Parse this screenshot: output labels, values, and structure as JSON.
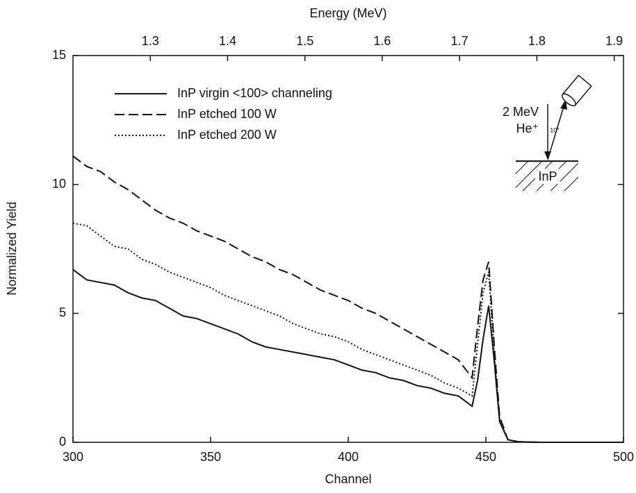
{
  "chart_data": {
    "type": "line",
    "xlabel": "Channel",
    "ylabel": "Normalized Yield",
    "x2label": "Energy (MeV)",
    "x": [
      300,
      305,
      310,
      315,
      320,
      325,
      330,
      335,
      340,
      345,
      350,
      355,
      360,
      365,
      370,
      375,
      380,
      385,
      390,
      395,
      400,
      405,
      410,
      415,
      420,
      425,
      430,
      435,
      440,
      445,
      447,
      449,
      451,
      453,
      455,
      458,
      462,
      470,
      480,
      490,
      500
    ],
    "series": [
      {
        "name": "InP virgin <100> channeling",
        "color": "#111111",
        "dash": "solid",
        "values": [
          6.7,
          6.3,
          6.2,
          6.1,
          5.8,
          5.6,
          5.5,
          5.2,
          4.9,
          4.8,
          4.6,
          4.4,
          4.2,
          3.9,
          3.7,
          3.6,
          3.5,
          3.4,
          3.3,
          3.2,
          3.0,
          2.8,
          2.7,
          2.5,
          2.4,
          2.2,
          2.1,
          1.9,
          1.8,
          1.4,
          2.4,
          4.0,
          5.3,
          3.2,
          0.8,
          0.1,
          0.02,
          0,
          0,
          0,
          0
        ]
      },
      {
        "name": "InP etched 100 W",
        "color": "#111111",
        "dash": "dashed",
        "values": [
          11.1,
          10.7,
          10.5,
          10.1,
          9.8,
          9.4,
          9.0,
          8.7,
          8.5,
          8.2,
          8.0,
          7.8,
          7.5,
          7.2,
          7.0,
          6.7,
          6.5,
          6.2,
          5.9,
          5.7,
          5.5,
          5.2,
          5.0,
          4.7,
          4.4,
          4.1,
          3.8,
          3.5,
          3.2,
          2.5,
          4.5,
          6.3,
          7.0,
          3.8,
          1.0,
          0.1,
          0.02,
          0,
          0,
          0,
          0
        ]
      },
      {
        "name": "InP etched 200 W",
        "color": "#111111",
        "dash": "dotted",
        "values": [
          8.5,
          8.4,
          8.0,
          7.6,
          7.5,
          7.1,
          6.9,
          6.6,
          6.4,
          6.2,
          6.0,
          5.7,
          5.5,
          5.3,
          5.1,
          4.9,
          4.6,
          4.4,
          4.2,
          4.1,
          3.9,
          3.6,
          3.4,
          3.2,
          3.0,
          2.8,
          2.6,
          2.3,
          2.1,
          1.8,
          3.8,
          5.8,
          6.6,
          3.5,
          0.9,
          0.1,
          0.02,
          0,
          0,
          0,
          0
        ]
      }
    ],
    "xlim": [
      300,
      500
    ],
    "xticks": [
      300,
      350,
      400,
      450,
      500
    ],
    "ylim": [
      0,
      15
    ],
    "yticks": [
      0,
      5,
      10,
      15
    ],
    "x2lim": [
      1.2,
      1.912
    ],
    "x2ticks": [
      1.3,
      1.4,
      1.5,
      1.6,
      1.7,
      1.8,
      1.9
    ],
    "legend": "upper left",
    "annotations": {
      "beam": "2 MeV",
      "ion": "He⁺",
      "angle": "10°",
      "target": "InP"
    }
  }
}
